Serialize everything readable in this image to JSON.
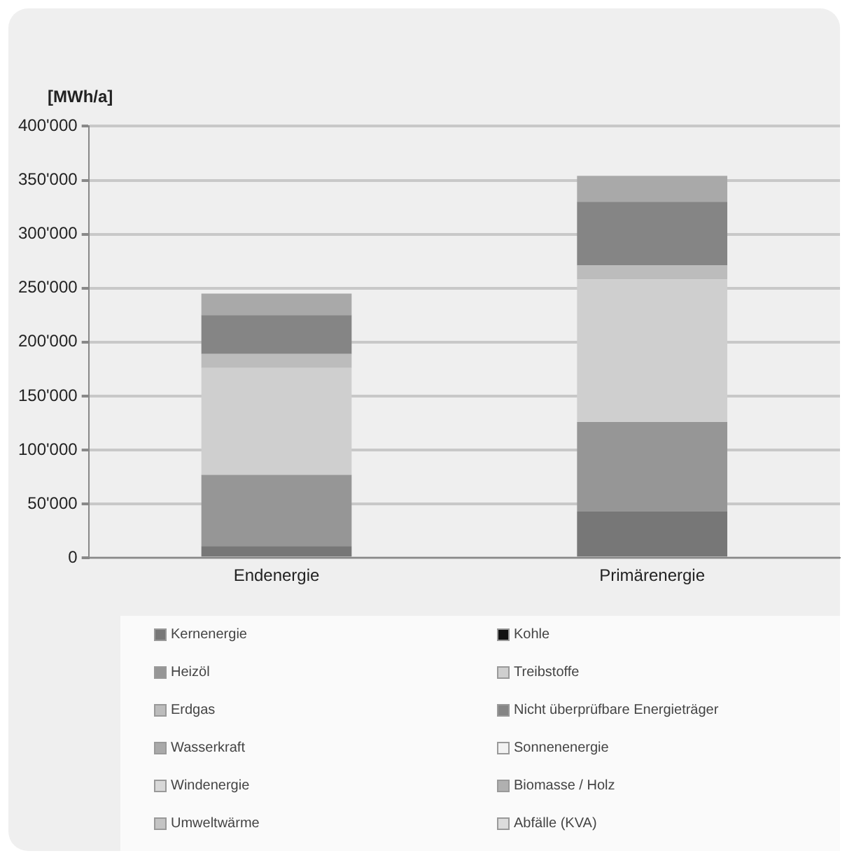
{
  "chart_data": {
    "type": "bar",
    "stacked": true,
    "ylabel": "[MWh/a]",
    "categories": [
      "Endenergie",
      "Primärenergie"
    ],
    "series": [
      {
        "name": "Kernenergie",
        "color": "#777777",
        "values": [
          11000,
          43000
        ]
      },
      {
        "name": "Kohle",
        "color": "#111111",
        "values": [
          0,
          0
        ]
      },
      {
        "name": "Heizöl",
        "color": "#969696",
        "values": [
          66000,
          83000
        ]
      },
      {
        "name": "Treibstoffe",
        "color": "#cfcfcf",
        "values": [
          99000,
          132000
        ]
      },
      {
        "name": "Erdgas",
        "color": "#bcbcbc",
        "values": [
          13000,
          13000
        ]
      },
      {
        "name": "Nicht überprüfbare Energieträger",
        "color": "#858585",
        "values": [
          36000,
          59000
        ]
      },
      {
        "name": "Wasserkraft",
        "color": "#a9a9a9",
        "values": [
          20000,
          24000
        ]
      },
      {
        "name": "Sonnenenergie",
        "color": "#f2f2f2",
        "values": [
          0,
          0
        ]
      },
      {
        "name": "Windenergie",
        "color": "#d8d8d8",
        "values": [
          0,
          0
        ]
      },
      {
        "name": "Biomasse / Holz",
        "color": "#b0b0b0",
        "values": [
          0,
          0
        ]
      },
      {
        "name": "Umweltwärme",
        "color": "#c4c4c4",
        "values": [
          0,
          0
        ]
      },
      {
        "name": "Abfälle (KVA)",
        "color": "#dcdcdc",
        "values": [
          0,
          0
        ]
      }
    ],
    "ylim": [
      0,
      400000
    ],
    "yticks": [
      {
        "value": 0,
        "label": "0"
      },
      {
        "value": 50000,
        "label": "50'000"
      },
      {
        "value": 100000,
        "label": "100'000"
      },
      {
        "value": 150000,
        "label": "150'000"
      },
      {
        "value": 200000,
        "label": "200'000"
      },
      {
        "value": 250000,
        "label": "250'000"
      },
      {
        "value": 300000,
        "label": "300'000"
      },
      {
        "value": 350000,
        "label": "350'000"
      },
      {
        "value": 400000,
        "label": "400'000"
      }
    ],
    "grid": "y",
    "legend": "bottom"
  }
}
